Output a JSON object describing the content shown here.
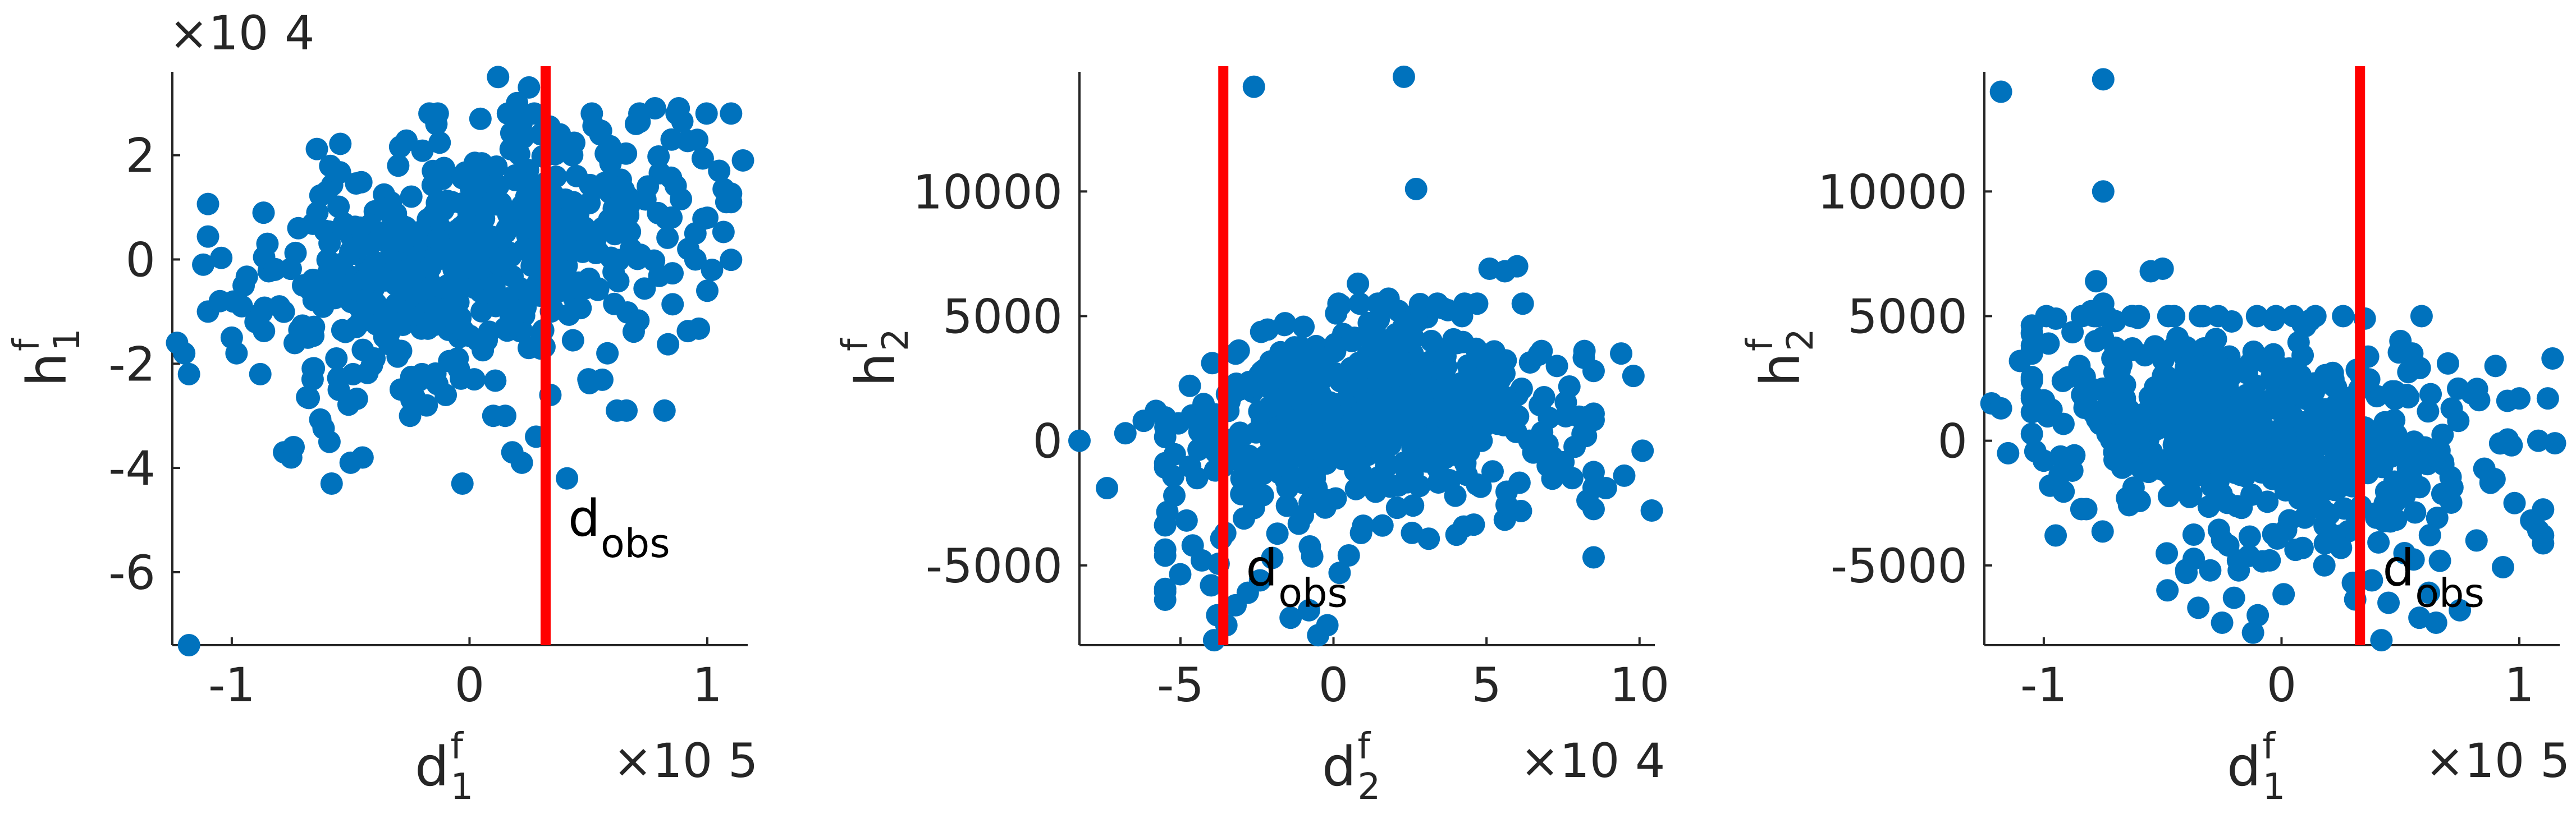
{
  "chart_data": [
    {
      "type": "scatter",
      "xlabel": {
        "base": "d",
        "sup": "f",
        "sub": "1"
      },
      "ylabel": {
        "base": "h",
        "sup": "f",
        "sub": "1"
      },
      "x_multiplier": "×10",
      "x_multiplier_exp": "5",
      "y_multiplier": "×10",
      "y_multiplier_exp": "4",
      "xlim": [
        -1.25,
        1.17
      ],
      "ylim": [
        -7.4,
        3.6
      ],
      "xticks": [
        -1,
        0,
        1
      ],
      "xtick_labels": [
        "-1",
        "0",
        "1"
      ],
      "yticks": [
        -6,
        -4,
        -2,
        0,
        2
      ],
      "ytick_labels": [
        "-6",
        "-4",
        "-2",
        "0",
        "2"
      ],
      "grid": false,
      "observation": {
        "x": 0.32,
        "label": "d",
        "label_sub": "obs",
        "color": "#ff0000"
      },
      "point_color": "#0072bd",
      "seed": 11,
      "points": [
        [
          -1.18,
          -7.4
        ],
        [
          -1.23,
          -1.6
        ],
        [
          -1.2,
          -1.8
        ],
        [
          -1.18,
          -2.2
        ],
        [
          -1.1,
          -1.0
        ],
        [
          -1.12,
          -0.1
        ],
        [
          -1.05,
          -0.8
        ],
        [
          -1.0,
          -1.5
        ],
        [
          -0.98,
          -1.8
        ],
        [
          -0.95,
          -0.5
        ],
        [
          -0.9,
          -1.2
        ],
        [
          -0.88,
          -2.2
        ],
        [
          -0.85,
          0.3
        ],
        [
          -0.82,
          -0.2
        ],
        [
          -0.8,
          -0.9
        ],
        [
          -0.78,
          -3.7
        ],
        [
          -0.75,
          -3.8
        ],
        [
          -0.74,
          -3.6
        ],
        [
          -0.72,
          0.6
        ],
        [
          -0.7,
          -0.5
        ],
        [
          -0.68,
          -1.5
        ],
        [
          -0.66,
          -2.3
        ],
        [
          -0.64,
          0.9
        ],
        [
          -0.6,
          1.3
        ],
        [
          -0.58,
          -4.3
        ],
        [
          -0.56,
          -1.9
        ],
        [
          -0.55,
          -2.5
        ],
        [
          -0.5,
          -3.9
        ],
        [
          -0.45,
          -3.8
        ],
        [
          -0.4,
          -1.9
        ],
        [
          -0.35,
          -1.3
        ],
        [
          -0.3,
          1.8
        ],
        [
          -0.25,
          -3.0
        ],
        [
          -0.2,
          -2.2
        ],
        [
          -0.18,
          -2.8
        ],
        [
          -0.1,
          -2.6
        ],
        [
          -0.05,
          -1.9
        ],
        [
          -0.03,
          -4.3
        ],
        [
          0.02,
          -2.3
        ],
        [
          0.1,
          -3.0
        ],
        [
          0.12,
          3.5
        ],
        [
          0.15,
          -3.0
        ],
        [
          0.18,
          -3.7
        ],
        [
          0.2,
          3.0
        ],
        [
          0.22,
          -3.9
        ],
        [
          0.25,
          3.3
        ],
        [
          0.28,
          -3.4
        ],
        [
          0.3,
          2.4
        ],
        [
          0.38,
          2.4
        ],
        [
          0.41,
          -4.2
        ],
        [
          0.45,
          1.6
        ],
        [
          0.5,
          -2.3
        ],
        [
          0.55,
          2.4
        ],
        [
          0.58,
          -1.8
        ],
        [
          0.62,
          -2.9
        ],
        [
          0.66,
          -2.9
        ],
        [
          0.7,
          2.6
        ],
        [
          0.75,
          1.4
        ],
        [
          0.78,
          2.9
        ],
        [
          0.82,
          -2.9
        ],
        [
          0.85,
          2.3
        ],
        [
          0.88,
          2.9
        ],
        [
          0.92,
          0.2
        ],
        [
          0.95,
          0.5
        ],
        [
          1.0,
          0.8
        ],
        [
          1.02,
          -0.2
        ],
        [
          1.05,
          1.7
        ],
        [
          1.08,
          1.1
        ],
        [
          1.1,
          1.1
        ],
        [
          1.15,
          1.9
        ],
        [
          1.0,
          -0.6
        ],
        [
          0.95,
          0.0
        ]
      ],
      "random_cloud": {
        "count": 520,
        "x_mean": 0.0,
        "x_sd": 0.42,
        "y_mean": 0.1,
        "y_sd": 1.15,
        "slope": 0.9,
        "x_range": [
          -1.1,
          1.1
        ],
        "y_range": [
          -3.5,
          2.8
        ]
      }
    },
    {
      "type": "scatter",
      "xlabel": {
        "base": "d",
        "sup": "f",
        "sub": "2"
      },
      "ylabel": {
        "base": "h",
        "sup": "f",
        "sub": "2"
      },
      "x_multiplier": "×10",
      "x_multiplier_exp": "4",
      "y_multiplier": "",
      "y_multiplier_exp": "",
      "xlim": [
        -8.3,
        10.5
      ],
      "ylim": [
        -8200,
        14800
      ],
      "xticks": [
        -5,
        0,
        5,
        10
      ],
      "xtick_labels": [
        "-5",
        "0",
        "5",
        "10"
      ],
      "yticks": [
        -5000,
        0,
        5000,
        10000
      ],
      "ytick_labels": [
        "-5000",
        "0",
        "5000",
        "10000"
      ],
      "grid": false,
      "observation": {
        "x": -3.6,
        "label": "d",
        "label_sub": "obs",
        "color": "#ff0000"
      },
      "point_color": "#0072bd",
      "seed": 23,
      "points": [
        [
          -2.6,
          14200
        ],
        [
          2.3,
          14600
        ],
        [
          2.7,
          10100
        ],
        [
          -8.3,
          0
        ],
        [
          -7.4,
          -1900
        ],
        [
          -6.8,
          300
        ],
        [
          -6.2,
          800
        ],
        [
          -5.8,
          1200
        ],
        [
          -5.5,
          -900
        ],
        [
          -5.2,
          -2200
        ],
        [
          -4.8,
          -3200
        ],
        [
          -4.6,
          -4200
        ],
        [
          -4.3,
          -4800
        ],
        [
          -4.0,
          -5800
        ],
        [
          -3.8,
          -7000
        ],
        [
          -3.9,
          -8000
        ],
        [
          -3.5,
          -7400
        ],
        [
          -3.2,
          -6600
        ],
        [
          -2.8,
          -6100
        ],
        [
          -2.4,
          -5600
        ],
        [
          -2.0,
          -4700
        ],
        [
          -1.4,
          -7100
        ],
        [
          -0.8,
          -6800
        ],
        [
          -0.5,
          -7800
        ],
        [
          -0.2,
          -7400
        ],
        [
          0.2,
          -5300
        ],
        [
          0.5,
          -4600
        ],
        [
          0.8,
          6300
        ],
        [
          0.6,
          4000
        ],
        [
          1.2,
          4600
        ],
        [
          1.8,
          5700
        ],
        [
          3.2,
          4000
        ],
        [
          4.2,
          5000
        ],
        [
          5.1,
          6900
        ],
        [
          5.6,
          6800
        ],
        [
          6.0,
          7000
        ],
        [
          6.8,
          3600
        ],
        [
          7.3,
          3000
        ],
        [
          8.2,
          3600
        ],
        [
          8.5,
          2800
        ],
        [
          9.4,
          3500
        ],
        [
          9.8,
          2600
        ],
        [
          9.5,
          -1400
        ],
        [
          10.1,
          -400
        ],
        [
          10.4,
          -2800
        ],
        [
          8.9,
          -1900
        ],
        [
          8.3,
          -2400
        ],
        [
          7.8,
          -1500
        ],
        [
          7.0,
          -1000
        ],
        [
          6.4,
          0
        ],
        [
          4.3,
          -700
        ],
        [
          3.4,
          -1100
        ],
        [
          2.6,
          -2600
        ],
        [
          1.6,
          -3400
        ],
        [
          0.9,
          -3700
        ],
        [
          2.1,
          200
        ],
        [
          1.0,
          -1700
        ],
        [
          -1.0,
          -3000
        ],
        [
          -1.5,
          -1900
        ],
        [
          -2.6,
          -2700
        ]
      ],
      "random_cloud": {
        "count": 540,
        "x_mean": 0.9,
        "x_sd": 3.0,
        "y_mean": 700,
        "y_sd": 2200,
        "curve": "parabola",
        "x_range": [
          -5.5,
          8.5
        ],
        "y_range": [
          -6500,
          5500
        ]
      }
    },
    {
      "type": "scatter",
      "xlabel": {
        "base": "d",
        "sup": "f",
        "sub": "1"
      },
      "ylabel": {
        "base": "h",
        "sup": "f",
        "sub": "2"
      },
      "x_multiplier": "×10",
      "x_multiplier_exp": "5",
      "y_multiplier": "",
      "y_multiplier_exp": "",
      "xlim": [
        -1.25,
        1.17
      ],
      "ylim": [
        -8200,
        14800
      ],
      "xticks": [
        -1,
        0,
        1
      ],
      "xtick_labels": [
        "-1",
        "0",
        "1"
      ],
      "yticks": [
        -5000,
        0,
        5000,
        10000
      ],
      "ytick_labels": [
        "-5000",
        "0",
        "5000",
        "10000"
      ],
      "grid": false,
      "observation": {
        "x": 0.33,
        "label": "d",
        "label_sub": "obs",
        "color": "#ff0000"
      },
      "point_color": "#0072bd",
      "seed": 37,
      "points": [
        [
          -1.18,
          14000
        ],
        [
          -0.75,
          14500
        ],
        [
          -0.75,
          10000
        ],
        [
          -1.22,
          1500
        ],
        [
          -1.18,
          1300
        ],
        [
          -1.15,
          -500
        ],
        [
          -1.1,
          3200
        ],
        [
          -1.05,
          1700
        ],
        [
          -1.0,
          -800
        ],
        [
          -0.98,
          3900
        ],
        [
          -0.95,
          -3800
        ],
        [
          -0.92,
          2400
        ],
        [
          -0.88,
          -1200
        ],
        [
          -0.85,
          3000
        ],
        [
          -0.8,
          5200
        ],
        [
          -0.78,
          6400
        ],
        [
          -0.75,
          5500
        ],
        [
          -0.7,
          4800
        ],
        [
          -0.65,
          -2300
        ],
        [
          -0.6,
          5000
        ],
        [
          -0.55,
          6800
        ],
        [
          -0.5,
          6900
        ],
        [
          -0.48,
          -6000
        ],
        [
          -0.4,
          -5300
        ],
        [
          -0.35,
          -6700
        ],
        [
          -0.3,
          -5200
        ],
        [
          -0.25,
          -7300
        ],
        [
          -0.2,
          -6300
        ],
        [
          -0.18,
          -5200
        ],
        [
          -0.12,
          -7700
        ],
        [
          -0.1,
          -7000
        ],
        [
          -0.05,
          -4800
        ],
        [
          0.05,
          5000
        ],
        [
          0.1,
          4600
        ],
        [
          0.18,
          -5000
        ],
        [
          0.25,
          -4300
        ],
        [
          0.3,
          -5700
        ],
        [
          0.35,
          4900
        ],
        [
          0.38,
          -5600
        ],
        [
          0.42,
          -8000
        ],
        [
          0.45,
          -6500
        ],
        [
          0.5,
          4000
        ],
        [
          0.55,
          3500
        ],
        [
          0.58,
          -7100
        ],
        [
          0.62,
          -6100
        ],
        [
          0.65,
          -7300
        ],
        [
          0.7,
          3100
        ],
        [
          0.75,
          -6800
        ],
        [
          0.8,
          1900
        ],
        [
          0.82,
          -4000
        ],
        [
          0.88,
          -1600
        ],
        [
          0.9,
          3000
        ],
        [
          0.95,
          1600
        ],
        [
          0.98,
          -2500
        ],
        [
          1.0,
          1700
        ],
        [
          1.05,
          -3200
        ],
        [
          1.08,
          -3600
        ],
        [
          1.1,
          -3800
        ],
        [
          1.12,
          1700
        ],
        [
          1.14,
          3300
        ],
        [
          1.15,
          -100
        ],
        [
          1.08,
          0
        ]
      ],
      "random_cloud": {
        "count": 540,
        "x_mean": -0.1,
        "x_sd": 0.45,
        "y_mean": 300,
        "y_sd": 2200,
        "slope": -1500,
        "x_range": [
          -1.05,
          1.1
        ],
        "y_range": [
          -6500,
          5000
        ]
      }
    }
  ]
}
